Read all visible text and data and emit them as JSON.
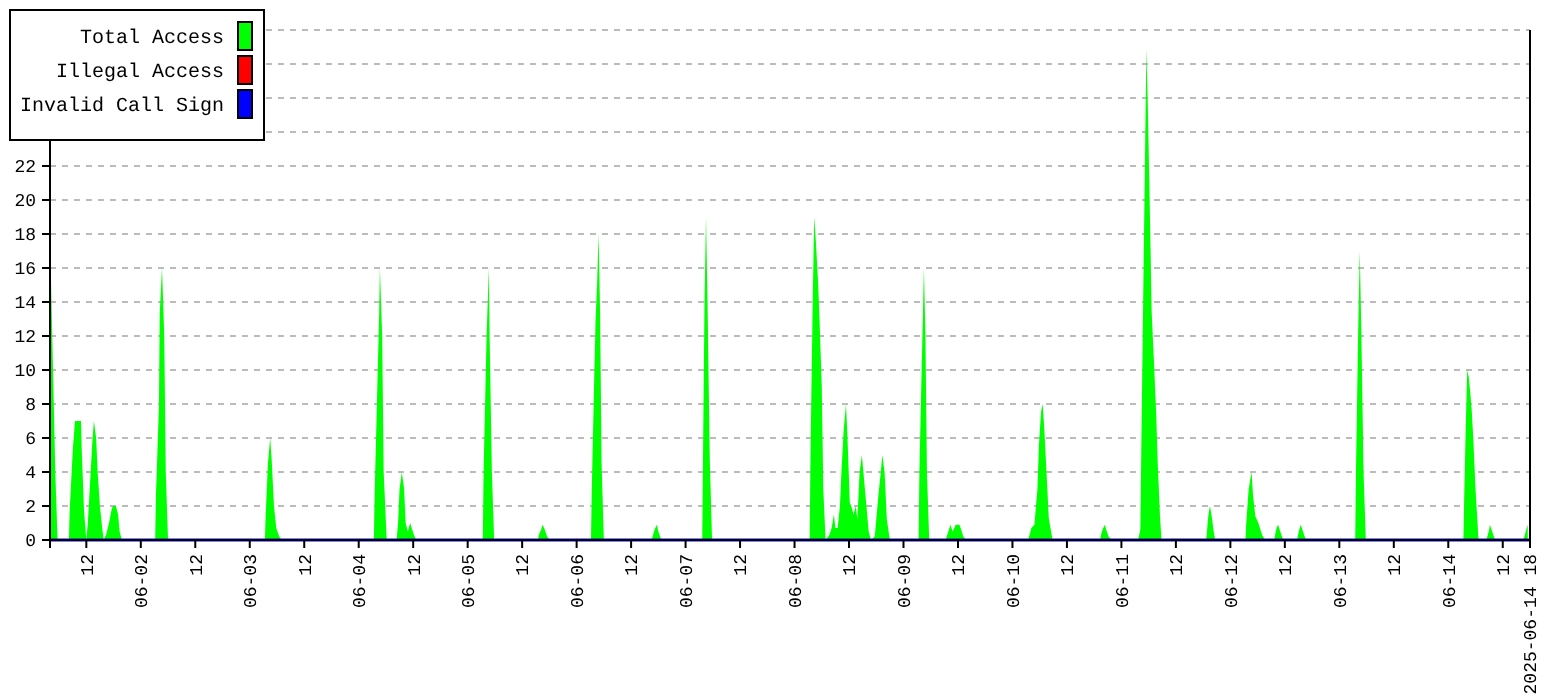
{
  "chart_data": {
    "type": "area",
    "legend": "top left",
    "grid": "y",
    "xlim": [
      "2025-06-01T04:00",
      "2025-06-14T18:00"
    ],
    "xticks": [
      {
        "value": "2025-06-01T12:00",
        "label": "12"
      },
      {
        "value": "2025-06-02T00:00",
        "label": "06-02"
      },
      {
        "value": "2025-06-02T12:00",
        "label": "12"
      },
      {
        "value": "2025-06-03T00:00",
        "label": "06-03"
      },
      {
        "value": "2025-06-03T12:00",
        "label": "12"
      },
      {
        "value": "2025-06-04T00:00",
        "label": "06-04"
      },
      {
        "value": "2025-06-04T12:00",
        "label": "12"
      },
      {
        "value": "2025-06-05T00:00",
        "label": "06-05"
      },
      {
        "value": "2025-06-05T12:00",
        "label": "12"
      },
      {
        "value": "2025-06-06T00:00",
        "label": "06-06"
      },
      {
        "value": "2025-06-06T12:00",
        "label": "12"
      },
      {
        "value": "2025-06-07T00:00",
        "label": "06-07"
      },
      {
        "value": "2025-06-07T12:00",
        "label": "12"
      },
      {
        "value": "2025-06-08T00:00",
        "label": "06-08"
      },
      {
        "value": "2025-06-08T12:00",
        "label": "12"
      },
      {
        "value": "2025-06-09T00:00",
        "label": "06-09"
      },
      {
        "value": "2025-06-09T12:00",
        "label": "12"
      },
      {
        "value": "2025-06-10T00:00",
        "label": "06-10"
      },
      {
        "value": "2025-06-10T12:00",
        "label": "12"
      },
      {
        "value": "2025-06-11T00:00",
        "label": "06-11"
      },
      {
        "value": "2025-06-11T12:00",
        "label": "12"
      },
      {
        "value": "2025-06-12T00:00",
        "label": "06-12"
      },
      {
        "value": "2025-06-12T12:00",
        "label": "12"
      },
      {
        "value": "2025-06-13T00:00",
        "label": "06-13"
      },
      {
        "value": "2025-06-13T12:00",
        "label": "12"
      },
      {
        "value": "2025-06-14T00:00",
        "label": "06-14"
      },
      {
        "value": "2025-06-14T12:00",
        "label": "12"
      },
      {
        "value": "2025-06-14T18:00",
        "label": "2025-06-14 18"
      }
    ],
    "ylim": [
      0,
      30
    ],
    "yticks": [
      0,
      2,
      4,
      6,
      8,
      10,
      12,
      14,
      16,
      18,
      20,
      22,
      {
        "value": 24,
        "label": null
      },
      {
        "value": 26,
        "label": null
      },
      {
        "value": 28,
        "label": null
      },
      {
        "value": 30,
        "label": null
      }
    ],
    "series": [
      {
        "name": "Total Access",
        "color": "#00ff00",
        "x": [
          "2025-06-01T04:10",
          "2025-06-01T05:10",
          "2025-06-01T05:40",
          "2025-06-01T08:10",
          "2025-06-01T08:20",
          "2025-06-01T09:00",
          "2025-06-01T09:30",
          "2025-06-01T10:50",
          "2025-06-01T11:00",
          "2025-06-01T11:30",
          "2025-06-01T12:00",
          "2025-06-01T12:20",
          "2025-06-01T12:50",
          "2025-06-01T13:20",
          "2025-06-01T13:40",
          "2025-06-01T14:10",
          "2025-06-01T14:30",
          "2025-06-01T15:00",
          "2025-06-01T15:30",
          "2025-06-01T15:50",
          "2025-06-01T16:20",
          "2025-06-01T17:00",
          "2025-06-01T17:30",
          "2025-06-01T17:50",
          "2025-06-01T18:30",
          "2025-06-01T19:00",
          "2025-06-01T19:20",
          "2025-06-01T19:50",
          "2025-06-02T03:10",
          "2025-06-02T03:20",
          "2025-06-02T04:00",
          "2025-06-02T04:10",
          "2025-06-02T04:40",
          "2025-06-02T05:10",
          "2025-06-02T05:30",
          "2025-06-02T06:00",
          "2025-06-03T03:20",
          "2025-06-03T03:30",
          "2025-06-03T04:00",
          "2025-06-03T04:30",
          "2025-06-03T04:50",
          "2025-06-03T05:20",
          "2025-06-03T05:50",
          "2025-06-03T06:30",
          "2025-06-03T07:00",
          "2025-06-04T03:20",
          "2025-06-04T03:30",
          "2025-06-04T04:00",
          "2025-06-04T04:30",
          "2025-06-04T04:40",
          "2025-06-04T05:10",
          "2025-06-04T05:30",
          "2025-06-04T06:10",
          "2025-06-04T08:20",
          "2025-06-04T08:40",
          "2025-06-04T09:00",
          "2025-06-04T09:30",
          "2025-06-04T10:00",
          "2025-06-04T10:20",
          "2025-06-04T10:50",
          "2025-06-04T11:20",
          "2025-06-04T11:40",
          "2025-06-04T12:10",
          "2025-06-04T12:40",
          "2025-06-05T03:20",
          "2025-06-05T03:30",
          "2025-06-05T04:10",
          "2025-06-05T04:40",
          "2025-06-05T04:50",
          "2025-06-05T05:20",
          "2025-06-05T05:50",
          "2025-06-05T15:30",
          "2025-06-05T15:40",
          "2025-06-05T16:10",
          "2025-06-05T16:30",
          "2025-06-05T17:00",
          "2025-06-05T17:30",
          "2025-06-05T18:00",
          "2025-06-06T03:10",
          "2025-06-06T03:20",
          "2025-06-06T03:50",
          "2025-06-06T04:10",
          "2025-06-06T04:30",
          "2025-06-06T04:50",
          "2025-06-06T05:10",
          "2025-06-06T05:30",
          "2025-06-06T06:00",
          "2025-06-06T16:30",
          "2025-06-06T16:50",
          "2025-06-06T17:10",
          "2025-06-06T17:40",
          "2025-06-06T18:00",
          "2025-06-06T18:40",
          "2025-06-07T03:40",
          "2025-06-07T03:50",
          "2025-06-07T04:10",
          "2025-06-07T04:30",
          "2025-06-07T04:50",
          "2025-06-07T05:20",
          "2025-06-07T05:50",
          "2025-06-08T03:20",
          "2025-06-08T03:30",
          "2025-06-08T04:00",
          "2025-06-08T04:20",
          "2025-06-08T04:40",
          "2025-06-08T05:10",
          "2025-06-08T05:30",
          "2025-06-08T06:00",
          "2025-06-08T06:20",
          "2025-06-08T06:50",
          "2025-06-08T07:40",
          "2025-06-08T08:10",
          "2025-06-08T08:40",
          "2025-06-08T09:00",
          "2025-06-08T09:30",
          "2025-06-08T10:00",
          "2025-06-08T10:20",
          "2025-06-08T10:50",
          "2025-06-08T11:20",
          "2025-06-08T11:40",
          "2025-06-08T12:10",
          "2025-06-08T12:30",
          "2025-06-08T13:00",
          "2025-06-08T13:30",
          "2025-06-08T13:50",
          "2025-06-08T14:20",
          "2025-06-08T14:50",
          "2025-06-08T15:10",
          "2025-06-08T15:40",
          "2025-06-08T16:20",
          "2025-06-08T16:50",
          "2025-06-08T17:40",
          "2025-06-08T18:00",
          "2025-06-08T18:30",
          "2025-06-08T19:00",
          "2025-06-08T19:20",
          "2025-06-08T19:50",
          "2025-06-08T20:20",
          "2025-06-08T21:00",
          "2025-06-09T03:20",
          "2025-06-09T03:30",
          "2025-06-09T04:10",
          "2025-06-09T04:30",
          "2025-06-09T04:50",
          "2025-06-09T05:10",
          "2025-06-09T05:40",
          "2025-06-09T09:20",
          "2025-06-09T09:30",
          "2025-06-09T10:00",
          "2025-06-09T10:20",
          "2025-06-09T10:50",
          "2025-06-09T11:30",
          "2025-06-09T12:20",
          "2025-06-09T12:50",
          "2025-06-09T13:10",
          "2025-06-09T13:50",
          "2025-06-10T03:30",
          "2025-06-10T03:40",
          "2025-06-10T04:10",
          "2025-06-10T04:50",
          "2025-06-10T05:30",
          "2025-06-10T05:50",
          "2025-06-10T06:10",
          "2025-06-10T06:20",
          "2025-06-10T06:40",
          "2025-06-10T07:00",
          "2025-06-10T07:30",
          "2025-06-10T08:00",
          "2025-06-10T08:50",
          "2025-06-10T19:20",
          "2025-06-10T19:30",
          "2025-06-10T19:50",
          "2025-06-10T20:20",
          "2025-06-10T20:40",
          "2025-06-10T21:10",
          "2025-06-10T21:50",
          "2025-06-11T03:40",
          "2025-06-11T04:10",
          "2025-06-11T04:30",
          "2025-06-11T05:10",
          "2025-06-11T05:30",
          "2025-06-11T05:50",
          "2025-06-11T06:20",
          "2025-06-11T06:40",
          "2025-06-11T07:10",
          "2025-06-11T07:40",
          "2025-06-11T08:00",
          "2025-06-11T08:30",
          "2025-06-11T08:50",
          "2025-06-11T18:40",
          "2025-06-11T18:50",
          "2025-06-11T19:10",
          "2025-06-11T19:30",
          "2025-06-11T19:50",
          "2025-06-11T20:20",
          "2025-06-11T20:40",
          "2025-06-12T03:20",
          "2025-06-12T03:30",
          "2025-06-12T04:00",
          "2025-06-12T04:20",
          "2025-06-12T04:40",
          "2025-06-12T05:00",
          "2025-06-12T05:30",
          "2025-06-12T06:10",
          "2025-06-12T07:00",
          "2025-06-12T07:40",
          "2025-06-12T09:40",
          "2025-06-12T09:50",
          "2025-06-12T10:10",
          "2025-06-12T10:30",
          "2025-06-12T11:00",
          "2025-06-12T11:30",
          "2025-06-12T11:40",
          "2025-06-12T14:40",
          "2025-06-12T14:50",
          "2025-06-12T15:10",
          "2025-06-12T15:30",
          "2025-06-12T16:00",
          "2025-06-12T16:30",
          "2025-06-12T17:00",
          "2025-06-13T03:30",
          "2025-06-13T03:40",
          "2025-06-13T04:10",
          "2025-06-13T04:30",
          "2025-06-13T04:50",
          "2025-06-13T05:20",
          "2025-06-13T05:50",
          "2025-06-14T03:20",
          "2025-06-14T03:30",
          "2025-06-14T03:50",
          "2025-06-14T04:10",
          "2025-06-14T04:30",
          "2025-06-14T04:50",
          "2025-06-14T05:10",
          "2025-06-14T05:30",
          "2025-06-14T06:00",
          "2025-06-14T06:40",
          "2025-06-14T08:20",
          "2025-06-14T08:30",
          "2025-06-14T09:00",
          "2025-06-14T09:10",
          "2025-06-14T09:40",
          "2025-06-14T10:10",
          "2025-06-14T10:40",
          "2025-06-14T16:20",
          "2025-06-14T16:40",
          "2025-06-14T17:10",
          "2025-06-14T17:30"
        ],
        "values": [
          16,
          4,
          0,
          0,
          1.7,
          5.2,
          7,
          7,
          5.2,
          1.7,
          0,
          1,
          3.4,
          5.8,
          7,
          6,
          4,
          2,
          0.7,
          0,
          0.3,
          1,
          1.7,
          2,
          2,
          1.5,
          0.5,
          0,
          0,
          2.6,
          7.9,
          13.3,
          16,
          12,
          4,
          0,
          0,
          1.4,
          4.5,
          6,
          4.7,
          2,
          0.7,
          0.2,
          0,
          0,
          2.6,
          7.9,
          13.3,
          16,
          12,
          4,
          0,
          0,
          1,
          3,
          4,
          3,
          1,
          0.5,
          1,
          0.7,
          0.3,
          0,
          0,
          3.9,
          12,
          16,
          12,
          4,
          0,
          0,
          0.3,
          0.6,
          0.9,
          0.6,
          0.2,
          0,
          0,
          2.9,
          9,
          12.9,
          15,
          18,
          13.4,
          4.5,
          0,
          0,
          0.3,
          0.6,
          0.9,
          0.5,
          0,
          0,
          4.7,
          14,
          19,
          14,
          4.7,
          0,
          0,
          4.7,
          14,
          19,
          17.7,
          15.3,
          13,
          9,
          3,
          0,
          0.3,
          0.7,
          1.5,
          0.7,
          0.7,
          2,
          4,
          6.5,
          8,
          6,
          2.2,
          2,
          1.5,
          2,
          1.2,
          4,
          5,
          4,
          2.5,
          0.5,
          0,
          0.2,
          1.2,
          2.7,
          4,
          5,
          4,
          1.2,
          0,
          0,
          4,
          12,
          16,
          12,
          4,
          0,
          0,
          0.2,
          0.6,
          0.9,
          0.5,
          0.9,
          0.9,
          0.5,
          0.2,
          0,
          0,
          0.2,
          0.7,
          0.9,
          3,
          5.6,
          7,
          7.6,
          8,
          6.6,
          4,
          1.3,
          0,
          0,
          0.3,
          0.6,
          0.9,
          0.6,
          0.2,
          0,
          0,
          0.6,
          7.9,
          21.9,
          28.9,
          25.4,
          18.4,
          13.4,
          10.5,
          7.4,
          4.5,
          1.4,
          0,
          0,
          0.5,
          1.5,
          2,
          1.5,
          0.5,
          0,
          0,
          1,
          2.9,
          3.5,
          4,
          2.6,
          1.4,
          1,
          0.3,
          0,
          0,
          0.3,
          0.7,
          0.9,
          0.5,
          0.1,
          0,
          0,
          0.2,
          0.6,
          0.9,
          0.5,
          0.1,
          0,
          0,
          4,
          12.5,
          17,
          12.5,
          4,
          0,
          0,
          2.4,
          6.5,
          10,
          9.6,
          8.7,
          7.6,
          6,
          3,
          0,
          0,
          0.1,
          0.6,
          0.9,
          0.5,
          0.1,
          0,
          0,
          0.1,
          0.6,
          0.9
        ]
      },
      {
        "name": "Illegal Access",
        "type": "line",
        "color": "#ff0000"
      },
      {
        "name": "Invalid Call Sign",
        "type": "line",
        "color": "#0000ff",
        "x": [
          "2025-06-01T04:00",
          "2025-06-14T18:00"
        ],
        "values": [
          0,
          0
        ]
      }
    ]
  }
}
